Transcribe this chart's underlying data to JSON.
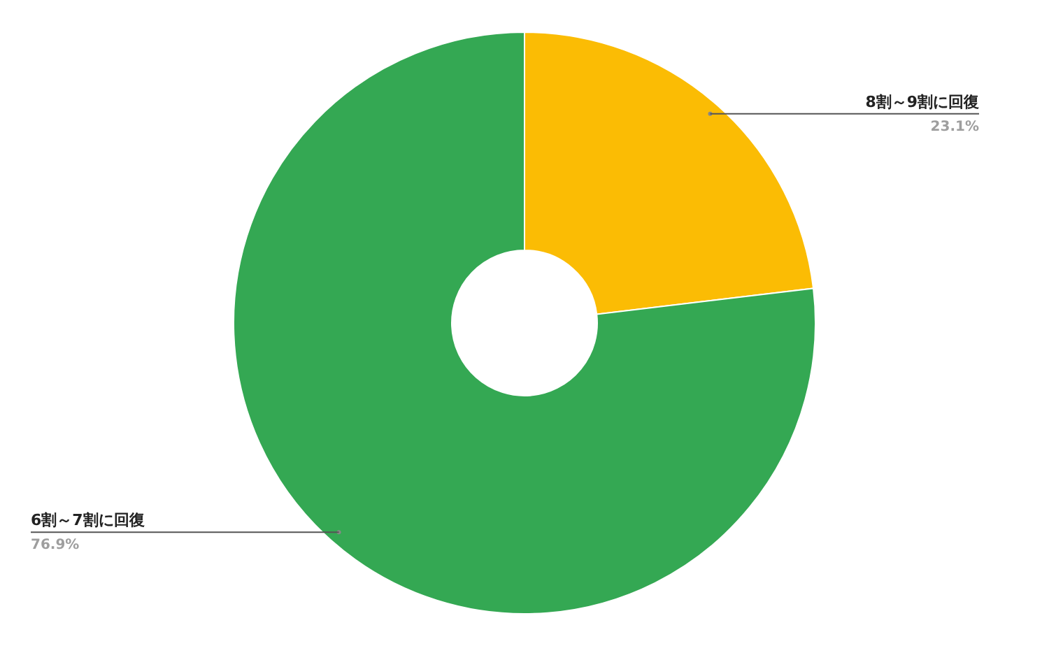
{
  "chart_data": {
    "type": "donut",
    "categories": [
      "8割～9割に回復",
      "6割～7割に回復"
    ],
    "values": [
      23.1,
      76.9
    ],
    "colors": [
      "#fbbc04",
      "#34a853"
    ],
    "value_labels": [
      "23.1%",
      "76.9%"
    ]
  }
}
